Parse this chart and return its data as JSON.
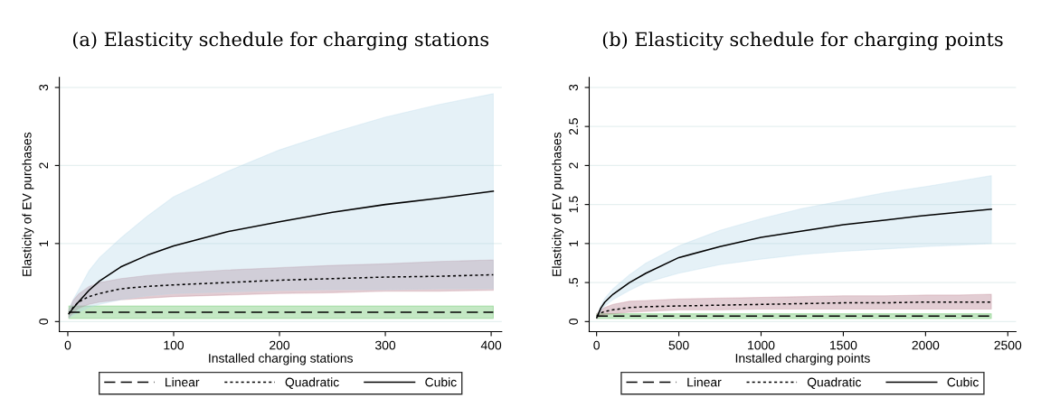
{
  "chart_data": [
    {
      "type": "line",
      "title": "(a) Elasticity schedule for charging stations",
      "xlabel": "Installed charging stations",
      "ylabel": "Elasticity of EV purchases",
      "x": [
        1,
        5,
        10,
        20,
        30,
        50,
        75,
        100,
        150,
        200,
        250,
        300,
        350,
        402
      ],
      "series": [
        {
          "name": "Linear",
          "color": "#000000",
          "line_style": "dashed",
          "values": [
            0.12,
            0.12,
            0.12,
            0.12,
            0.12,
            0.12,
            0.12,
            0.12,
            0.12,
            0.12,
            0.12,
            0.12,
            0.12,
            0.12
          ],
          "lower": [
            0.04,
            0.04,
            0.04,
            0.04,
            0.04,
            0.04,
            0.04,
            0.04,
            0.04,
            0.04,
            0.04,
            0.04,
            0.04,
            0.04
          ],
          "upper": [
            0.2,
            0.2,
            0.2,
            0.2,
            0.2,
            0.2,
            0.2,
            0.2,
            0.2,
            0.2,
            0.2,
            0.2,
            0.2,
            0.2
          ]
        },
        {
          "name": "Quadratic",
          "color": "#000000",
          "line_style": "dotted",
          "values": [
            0.1,
            0.18,
            0.25,
            0.32,
            0.36,
            0.42,
            0.45,
            0.47,
            0.5,
            0.53,
            0.55,
            0.57,
            0.58,
            0.6
          ],
          "lower": [
            0.05,
            0.11,
            0.17,
            0.22,
            0.25,
            0.28,
            0.3,
            0.32,
            0.34,
            0.36,
            0.37,
            0.39,
            0.39,
            0.4
          ],
          "upper": [
            0.15,
            0.27,
            0.35,
            0.45,
            0.5,
            0.55,
            0.59,
            0.62,
            0.66,
            0.69,
            0.72,
            0.74,
            0.77,
            0.79
          ]
        },
        {
          "name": "Cubic",
          "color": "#000000",
          "line_style": "solid",
          "values": [
            0.1,
            0.17,
            0.25,
            0.4,
            0.52,
            0.7,
            0.85,
            0.97,
            1.15,
            1.28,
            1.4,
            1.5,
            1.58,
            1.67
          ],
          "lower": [
            0.05,
            0.08,
            0.12,
            0.18,
            0.22,
            0.28,
            0.33,
            0.36,
            0.38,
            0.4,
            0.41,
            0.41,
            0.42,
            0.42
          ],
          "upper": [
            0.15,
            0.28,
            0.4,
            0.65,
            0.82,
            1.07,
            1.35,
            1.6,
            1.92,
            2.2,
            2.42,
            2.62,
            2.78,
            2.92
          ]
        }
      ],
      "xlim": [
        -8,
        410
      ],
      "xticks": [
        0,
        100,
        200,
        300,
        400
      ],
      "ylim": [
        -0.13,
        3.13
      ],
      "yticks": [
        0,
        1,
        2,
        3
      ],
      "grid": "y",
      "legend": "bottom"
    },
    {
      "type": "line",
      "title": "(b) Elasticity schedule for charging points",
      "xlabel": "Installed charging points",
      "ylabel": "Elasticity of EV purchases",
      "x": [
        1,
        25,
        50,
        100,
        200,
        300,
        500,
        750,
        1000,
        1250,
        1500,
        1750,
        2000,
        2200,
        2400
      ],
      "series": [
        {
          "name": "Linear",
          "color": "#000000",
          "line_style": "dashed",
          "values": [
            0.07,
            0.07,
            0.07,
            0.07,
            0.07,
            0.07,
            0.07,
            0.07,
            0.07,
            0.07,
            0.07,
            0.07,
            0.07,
            0.07,
            0.07
          ],
          "lower": [
            0.04,
            0.04,
            0.04,
            0.04,
            0.04,
            0.04,
            0.04,
            0.04,
            0.04,
            0.04,
            0.04,
            0.04,
            0.04,
            0.04,
            0.04
          ],
          "upper": [
            0.1,
            0.1,
            0.1,
            0.1,
            0.1,
            0.1,
            0.1,
            0.1,
            0.1,
            0.1,
            0.1,
            0.1,
            0.1,
            0.1,
            0.1
          ]
        },
        {
          "name": "Quadratic",
          "color": "#000000",
          "line_style": "dotted",
          "values": [
            0.07,
            0.11,
            0.13,
            0.15,
            0.18,
            0.19,
            0.2,
            0.21,
            0.22,
            0.23,
            0.24,
            0.24,
            0.25,
            0.25,
            0.25
          ],
          "lower": [
            0.04,
            0.07,
            0.09,
            0.1,
            0.12,
            0.13,
            0.15,
            0.15,
            0.16,
            0.16,
            0.16,
            0.16,
            0.16,
            0.16,
            0.16
          ],
          "upper": [
            0.1,
            0.15,
            0.18,
            0.22,
            0.26,
            0.27,
            0.29,
            0.3,
            0.31,
            0.32,
            0.33,
            0.33,
            0.34,
            0.34,
            0.35
          ]
        },
        {
          "name": "Cubic",
          "color": "#000000",
          "line_style": "solid",
          "values": [
            0.05,
            0.17,
            0.25,
            0.35,
            0.5,
            0.62,
            0.82,
            0.96,
            1.08,
            1.16,
            1.24,
            1.3,
            1.36,
            1.4,
            1.44
          ],
          "lower": [
            0.04,
            0.13,
            0.2,
            0.28,
            0.4,
            0.5,
            0.62,
            0.73,
            0.8,
            0.86,
            0.9,
            0.93,
            0.96,
            0.98,
            1.0
          ],
          "upper": [
            0.06,
            0.2,
            0.3,
            0.42,
            0.6,
            0.75,
            0.97,
            1.17,
            1.32,
            1.45,
            1.55,
            1.65,
            1.73,
            1.8,
            1.87
          ]
        }
      ],
      "xlim": [
        -45,
        2550
      ],
      "xticks": [
        0,
        500,
        1000,
        1500,
        2000,
        2500
      ],
      "ylim": [
        -0.13,
        3.13
      ],
      "yticks": [
        0,
        {
          "value": 0.5,
          "label": ".5"
        },
        1,
        1.5,
        2,
        2.5,
        3
      ],
      "grid": "y",
      "legend": "bottom"
    }
  ]
}
